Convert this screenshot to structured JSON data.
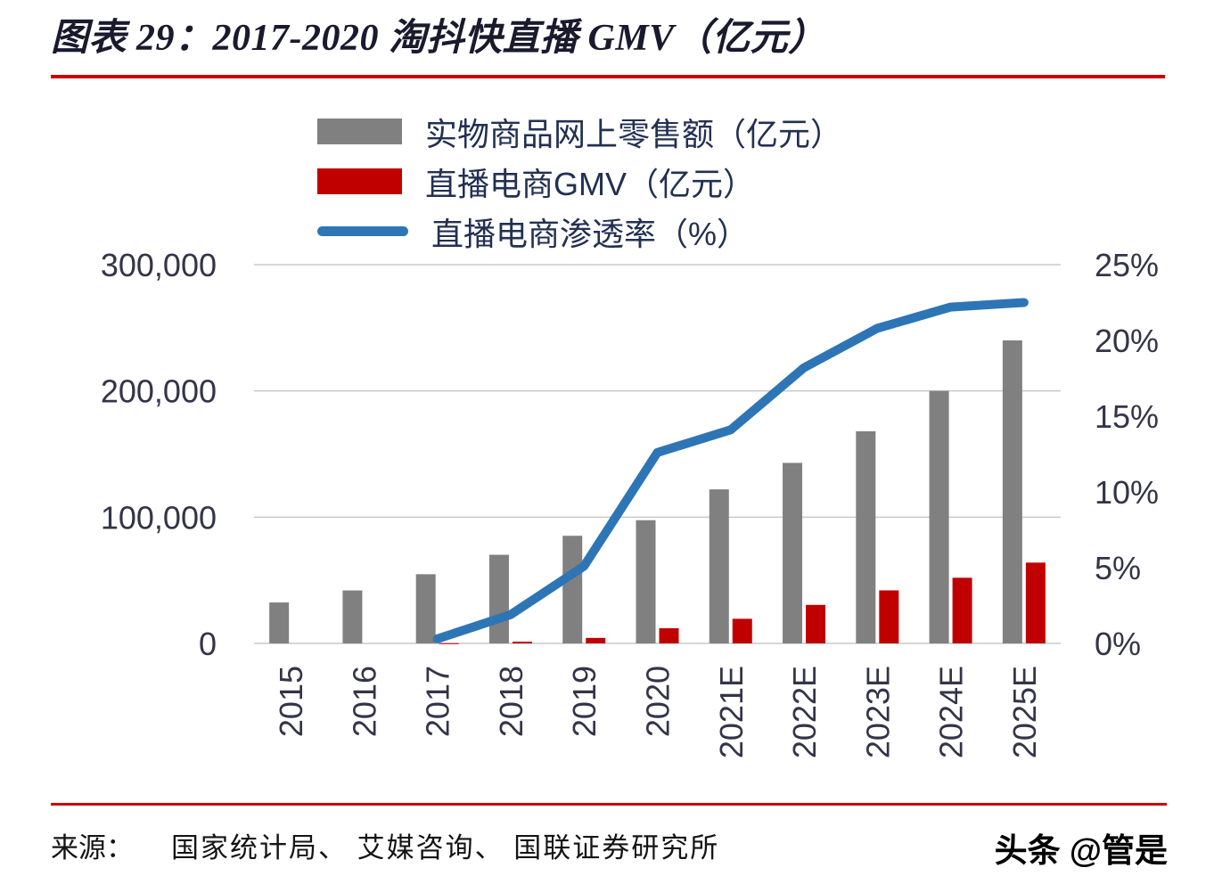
{
  "header": {
    "title": "图表 29：2017-2020 淘抖快直播 GMV（亿元）",
    "title_color": "#1a1a2e",
    "accent_color": "#cc0000"
  },
  "chart_data": {
    "type": "bar",
    "title": "图表 29：2017-2020 淘抖快直播 GMV（亿元）",
    "categories": [
      "2015",
      "2016",
      "2017",
      "2018",
      "2019",
      "2020",
      "2021E",
      "2022E",
      "2023E",
      "2024E",
      "2025E"
    ],
    "series": [
      {
        "name": "实物商品网上零售额（亿元）",
        "type": "bar",
        "axis": "left",
        "color": "#808080",
        "values": [
          32424,
          41944,
          54806,
          70198,
          85239,
          97590,
          122000,
          143000,
          168000,
          200000,
          240000
        ]
      },
      {
        "name": "直播电商GMV（亿元）",
        "type": "bar",
        "axis": "left",
        "color": "#c00000",
        "values": [
          0,
          0,
          190,
          1330,
          4338,
          12000,
          19500,
          30500,
          42000,
          52000,
          64000
        ]
      },
      {
        "name": "直播电商渗透率（%）",
        "type": "line",
        "axis": "right",
        "color": "#2e75b6",
        "values": [
          null,
          null,
          0.3,
          1.9,
          5.1,
          12.6,
          14.1,
          18.2,
          20.8,
          22.2,
          22.5
        ]
      }
    ],
    "left_axis": {
      "min": 0,
      "max": 300000,
      "ticks": [
        0,
        100000,
        200000,
        300000
      ],
      "tick_labels": [
        "0",
        "100,000",
        "200,000",
        "300,000"
      ]
    },
    "right_axis": {
      "min": 0,
      "max": 25,
      "ticks": [
        0,
        5,
        10,
        15,
        20,
        25
      ],
      "tick_labels": [
        "0%",
        "5%",
        "10%",
        "15%",
        "20%",
        "25%"
      ]
    },
    "grid": true,
    "legend_position": "top",
    "text_color": "#343449",
    "legend_text_color": "#223052"
  },
  "footer": {
    "source_label": "来源：",
    "source_text": "国家统计局、 艾媒咨询、 国联证券研究所",
    "watermark": "头条 @管是"
  }
}
